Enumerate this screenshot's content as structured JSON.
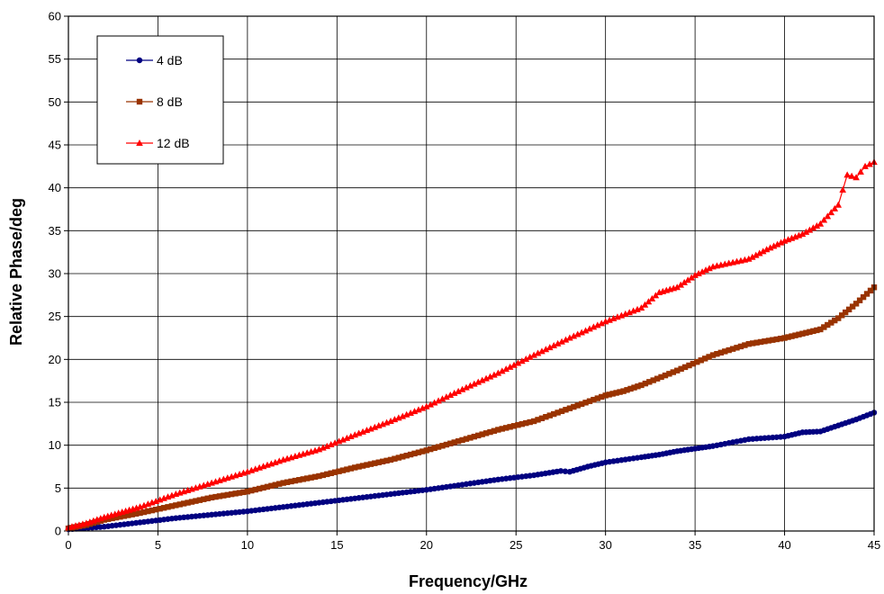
{
  "chart_data": {
    "type": "line",
    "title": "",
    "xlabel": "Frequency/GHz",
    "ylabel": "Relative Phase/deg",
    "xlim": [
      0,
      45
    ],
    "ylim": [
      0,
      60
    ],
    "x_ticks": [
      0,
      5,
      10,
      15,
      20,
      25,
      30,
      35,
      40,
      45
    ],
    "y_ticks": [
      0,
      5,
      10,
      15,
      20,
      25,
      30,
      35,
      40,
      45,
      50,
      55,
      60
    ],
    "grid": true,
    "legend_position": "top-left",
    "series": [
      {
        "name": "4 dB",
        "color": "#000080",
        "marker": "circle",
        "x": [
          0,
          2,
          4,
          6,
          8,
          10,
          12,
          14,
          16,
          18,
          20,
          22,
          24,
          26,
          27.5,
          28,
          29,
          30,
          32,
          33,
          34,
          35,
          36,
          38,
          40,
          41,
          42,
          43,
          44,
          45
        ],
        "y": [
          0.2,
          0.5,
          1.0,
          1.5,
          1.9,
          2.3,
          2.8,
          3.3,
          3.8,
          4.3,
          4.8,
          5.4,
          6.0,
          6.5,
          7.0,
          6.9,
          7.5,
          8.0,
          8.6,
          8.9,
          9.3,
          9.6,
          9.9,
          10.7,
          11.0,
          11.5,
          11.6,
          12.3,
          13.0,
          13.8
        ]
      },
      {
        "name": "8 dB",
        "color": "#993300",
        "marker": "square",
        "x": [
          0,
          1,
          2,
          4,
          6,
          8,
          10,
          12,
          14,
          16,
          18,
          20,
          22,
          24,
          26,
          28,
          30,
          31,
          32,
          34,
          36,
          38,
          40,
          41,
          42,
          43,
          44,
          45
        ],
        "y": [
          0.3,
          0.7,
          1.3,
          2.1,
          3.0,
          3.9,
          4.6,
          5.6,
          6.4,
          7.4,
          8.3,
          9.4,
          10.6,
          11.8,
          12.8,
          14.3,
          15.8,
          16.3,
          17.0,
          18.7,
          20.5,
          21.8,
          22.5,
          23.0,
          23.5,
          24.8,
          26.5,
          28.4
        ]
      },
      {
        "name": "12 dB",
        "color": "#ff0000",
        "marker": "triangle",
        "x": [
          0,
          1,
          2,
          3,
          4,
          6,
          8,
          10,
          12,
          14,
          16,
          18,
          20,
          22,
          24,
          26,
          28,
          30,
          32,
          33,
          34,
          35,
          36,
          38,
          39,
          40,
          41,
          42,
          43,
          43.5,
          44,
          44.5,
          45
        ],
        "y": [
          0.4,
          0.9,
          1.6,
          2.2,
          2.8,
          4.3,
          5.6,
          6.9,
          8.3,
          9.5,
          11.2,
          12.8,
          14.5,
          16.5,
          18.4,
          20.5,
          22.5,
          24.4,
          26.0,
          27.8,
          28.4,
          29.8,
          30.8,
          31.7,
          32.8,
          33.8,
          34.6,
          35.8,
          38.0,
          41.5,
          41.2,
          42.5,
          43.0
        ]
      }
    ]
  }
}
